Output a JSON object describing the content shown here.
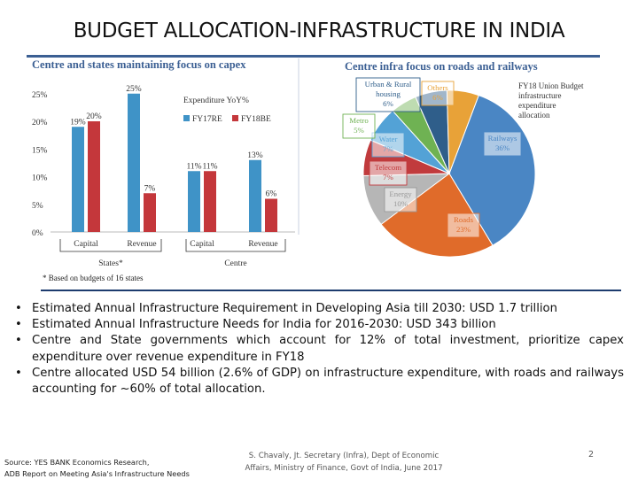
{
  "slide": {
    "title": "BUDGET ALLOCATION-INFRASTRUCTURE IN INDIA",
    "page_number": "2",
    "source": [
      "Source: YES BANK Economics Research,",
      "ADB Report on Meeting Asia's Infrastructure Needs"
    ],
    "credit": [
      "S. Chavaly, Jt. Secretary (Infra), Dept of Economic",
      "Affairs, Ministry of Finance, Govt of India, June 2017"
    ],
    "bullets": [
      "Estimated Annual Infrastructure Requirement in Developing Asia till 2030: USD 1.7 trillion",
      "Estimated Annual Infrastructure Needs for India for 2016-2030: USD 343 billion",
      "Centre and State governments which account for 12% of total investment, prioritize capex expenditure over revenue expenditure in FY18",
      "Centre allocated USD 54 billion (2.6% of GDP) on infrastructure expenditure, with roads and railways accounting for ~60% of total allocation."
    ],
    "bullet_glyph": "•"
  },
  "colors": {
    "title_blue": "#3b5f93",
    "fy17re": "#3f93c7",
    "fy18be": "#c4373b"
  },
  "chart_data": [
    {
      "type": "bar",
      "title": "Centre and states maintaining focus on capex",
      "legend_title": "Expenditure YoY%",
      "legend_placement": "top-right",
      "categories": [
        "Capital",
        "Revenue",
        "Capital",
        "Revenue"
      ],
      "groups": [
        {
          "label": "States*",
          "categories": [
            "Capital",
            "Revenue"
          ]
        },
        {
          "label": "Centre",
          "categories": [
            "Capital",
            "Revenue"
          ]
        }
      ],
      "series": [
        {
          "name": "FY17RE",
          "color": "#3f93c7",
          "values": [
            19,
            25,
            11,
            13
          ],
          "labels": [
            "19%",
            "25%",
            "11%",
            "13%"
          ]
        },
        {
          "name": "FY18BE",
          "color": "#c4373b",
          "values": [
            20,
            7,
            11,
            6
          ],
          "labels": [
            "20%",
            "7%",
            "11%",
            "6%"
          ]
        }
      ],
      "y_ticks": [
        "25%",
        "20%",
        "15%",
        "10%",
        "5%",
        "0%"
      ],
      "ylim": [
        0,
        27
      ],
      "footnote": "* Based on budgets of 16 states"
    },
    {
      "type": "pie",
      "title": "Centre infra focus on roads and railways",
      "annotation": [
        "FY18 Union Budget",
        "infrastructure",
        "expenditure",
        "allocation"
      ],
      "slices": [
        {
          "label": "Railways",
          "value_label": "36%",
          "value": 36,
          "color": "#4a86c4"
        },
        {
          "label": "Roads",
          "value_label": "23%",
          "value": 23,
          "color": "#e06b2a"
        },
        {
          "label": "Energy",
          "value_label": "10%",
          "value": 10,
          "color": "#b6b6b6"
        },
        {
          "label": "Telecom",
          "value_label": "7%",
          "value": 7,
          "color": "#c13b3d"
        },
        {
          "label": "Water",
          "value_label": "7%",
          "value": 7,
          "color": "#53a2d6"
        },
        {
          "label": "Metro",
          "value_label": "5%",
          "value": 5,
          "color": "#6fb253"
        },
        {
          "label": "Urban & Rural housing",
          "value_label": "6%",
          "value": 6,
          "color": "#2f5e8a"
        },
        {
          "label": "Others",
          "value_label": "6%",
          "value": 6,
          "color": "#e8a238"
        }
      ]
    }
  ]
}
